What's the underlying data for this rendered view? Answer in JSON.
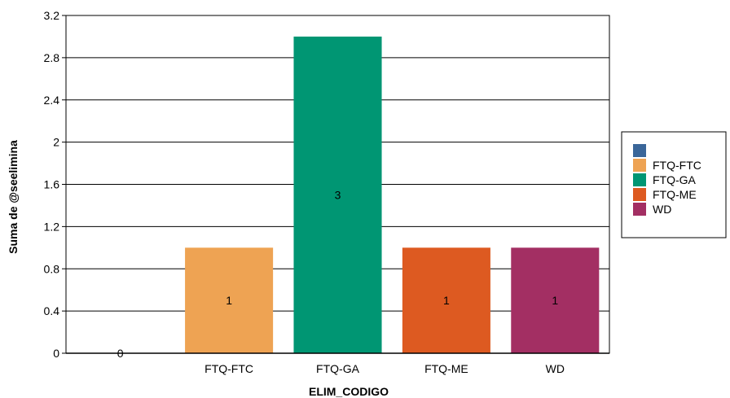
{
  "chart_data": {
    "type": "bar",
    "categories": [
      "",
      "FTQ-FTC",
      "FTQ-GA",
      "FTQ-ME",
      "WD"
    ],
    "values": [
      0,
      1,
      3,
      1,
      1
    ],
    "data_labels": [
      "0",
      "1",
      "3",
      "1",
      "1"
    ],
    "colors": [
      "#3a6699",
      "#eea353",
      "#009673",
      "#dd5a21",
      "#a32f63"
    ],
    "xlabel": "ELIM_CODIGO",
    "ylabel": "Suma de @seelimina",
    "ylim": [
      0,
      3.2
    ],
    "yticks": [
      "0",
      "0.4",
      "0.8",
      "1.2",
      "1.6",
      "2",
      "2.4",
      "2.8",
      "3.2"
    ],
    "ytick_values": [
      0,
      0.4,
      0.8,
      1.2,
      1.6,
      2,
      2.4,
      2.8,
      3.2
    ],
    "grid": true,
    "legend": {
      "placement": "right",
      "entries": [
        "",
        "FTQ-FTC",
        "FTQ-GA",
        "FTQ-ME",
        "WD"
      ]
    }
  }
}
